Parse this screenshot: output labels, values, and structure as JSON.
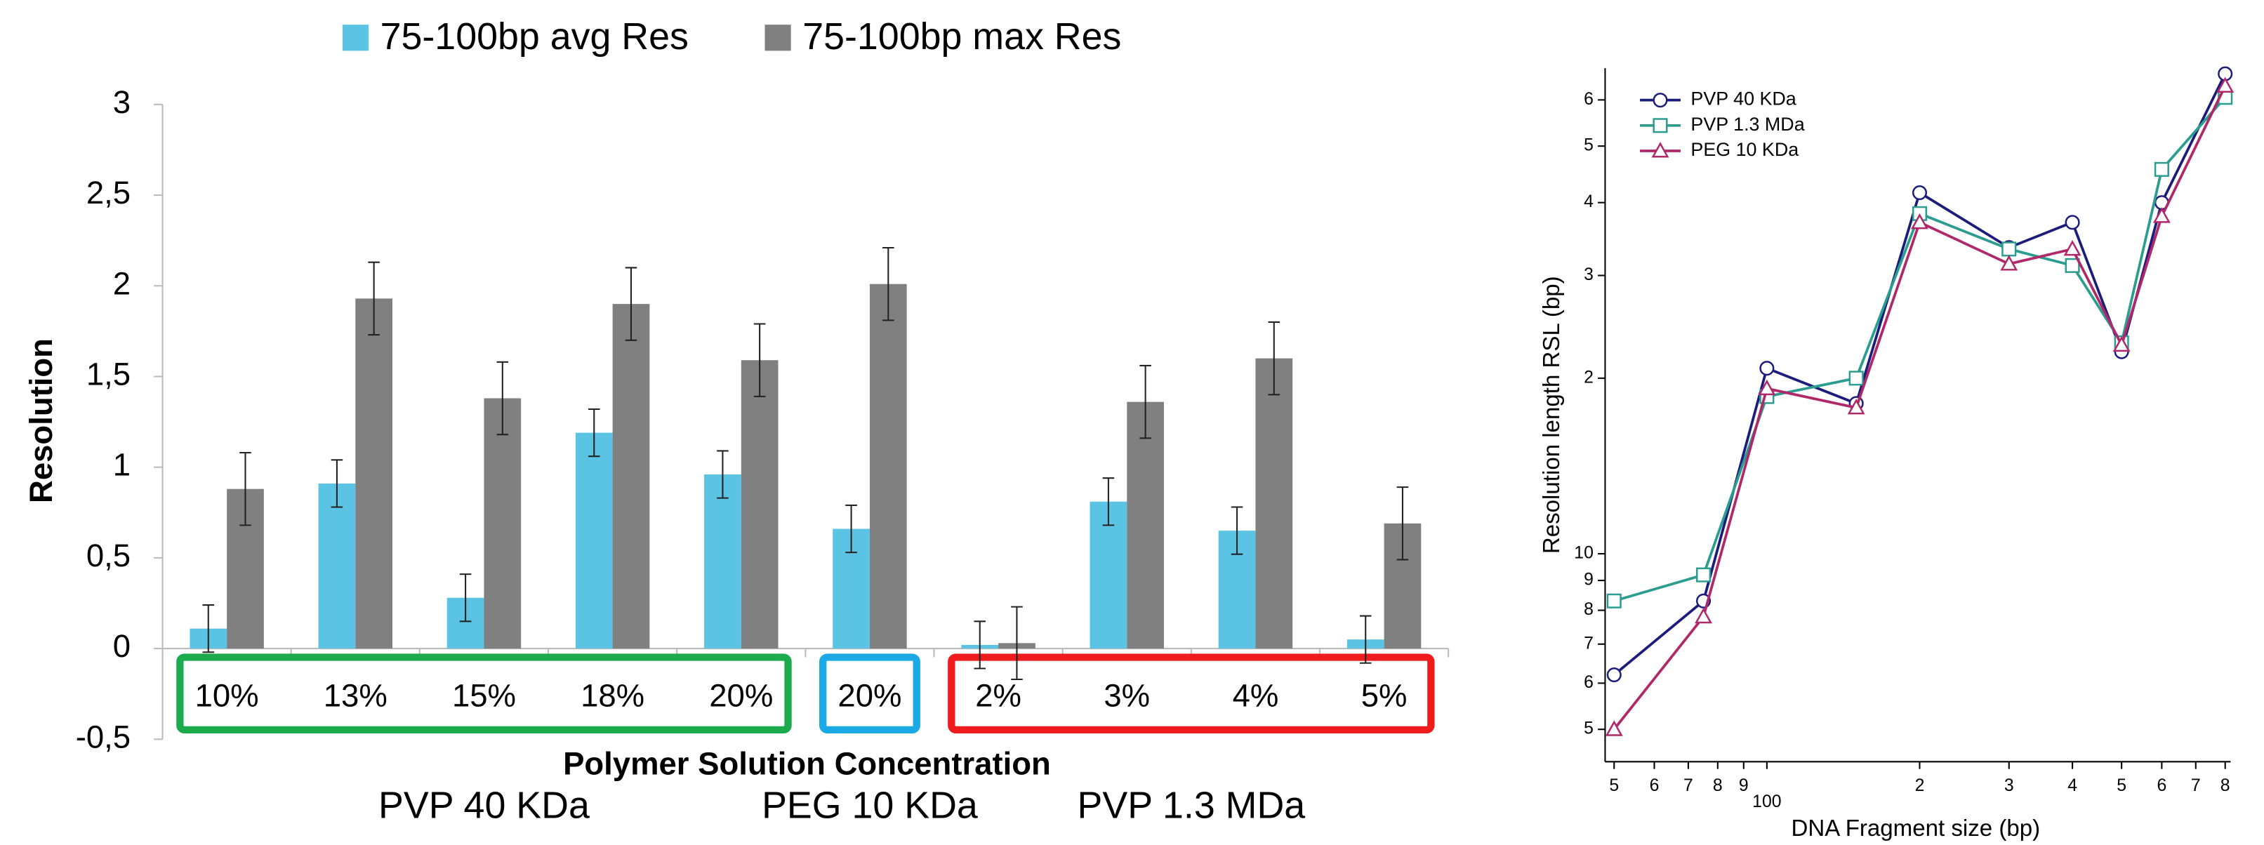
{
  "chart_data": [
    {
      "type": "bar",
      "ylabel": "Resolution",
      "xlabel": "Polymer Solution Concentration",
      "ylim": [
        -0.5,
        3
      ],
      "yticks": [
        {
          "value": -0.5,
          "label": "-0,5"
        },
        0,
        {
          "value": 0.5,
          "label": "0,5"
        },
        1,
        {
          "value": 1.5,
          "label": "1,5"
        },
        2,
        {
          "value": 2.5,
          "label": "2,5"
        },
        3
      ],
      "groups": [
        {
          "name": "PVP 40 KDa",
          "color": "#1bab4c",
          "categories": [
            "10%",
            "13%",
            "15%",
            "18%",
            "20%"
          ]
        },
        {
          "name": "PEG 10 KDa",
          "color": "#1ba9e6",
          "categories": [
            "20%"
          ]
        },
        {
          "name": "PVP 1.3 MDa",
          "color": "#ee1c1c",
          "categories": [
            "2%",
            "3%",
            "4%",
            "5%"
          ]
        }
      ],
      "series": [
        {
          "name": "75-100bp avg Res",
          "color": "#5bc4e4",
          "values": [
            0.11,
            0.91,
            0.28,
            1.19,
            0.96,
            0.66,
            0.02,
            0.81,
            0.65,
            0.05
          ],
          "errors": [
            0.13,
            0.13,
            0.13,
            0.13,
            0.13,
            0.13,
            0.13,
            0.13,
            0.13,
            0.13
          ]
        },
        {
          "name": "75-100bp max Res",
          "color": "#808080",
          "values": [
            0.88,
            1.93,
            1.38,
            1.9,
            1.59,
            2.01,
            0.03,
            1.36,
            1.6,
            0.69
          ],
          "errors": [
            0.2,
            0.2,
            0.2,
            0.2,
            0.2,
            0.2,
            0.2,
            0.2,
            0.2,
            0.2
          ]
        }
      ]
    },
    {
      "type": "line",
      "xlabel": "DNA Fragment size (bp)",
      "ylabel": "Resolution length RSL (bp)",
      "log_x": true,
      "log_y": true,
      "xlim": [
        48,
        820
      ],
      "ylim": [
        4.4,
        68
      ],
      "xticks": [
        {
          "value": 50,
          "label": "5"
        },
        {
          "value": 60,
          "label": "6"
        },
        {
          "value": 70,
          "label": "7"
        },
        {
          "value": 80,
          "label": "8"
        },
        {
          "value": 90,
          "label": "9"
        },
        100,
        {
          "value": 200,
          "label": "2"
        },
        {
          "value": 300,
          "label": "3"
        },
        {
          "value": 400,
          "label": "4"
        },
        {
          "value": 500,
          "label": "5"
        },
        {
          "value": 600,
          "label": "6"
        },
        {
          "value": 700,
          "label": "7"
        },
        {
          "value": 800,
          "label": "8"
        }
      ],
      "yticks": [
        5,
        6,
        7,
        8,
        9,
        10,
        {
          "value": 20,
          "label": "2"
        },
        {
          "value": 30,
          "label": "3"
        },
        {
          "value": 40,
          "label": "4"
        },
        {
          "value": 50,
          "label": "5"
        },
        {
          "value": 60,
          "label": "6"
        }
      ],
      "x": [
        50,
        75,
        100,
        150,
        200,
        300,
        400,
        500,
        600,
        800
      ],
      "series": [
        {
          "name": "PVP 40 KDa",
          "color": "#1c1c7c",
          "marker": "circle",
          "values": [
            6.2,
            8.3,
            20.8,
            18.1,
            41.6,
            33.5,
            37.0,
            22.2,
            40.0,
            66.5
          ]
        },
        {
          "name": "PVP 1.3 MDa",
          "color": "#2a9d8f",
          "marker": "square",
          "values": [
            8.3,
            9.2,
            18.6,
            20.0,
            38.3,
            33.3,
            31.2,
            23.0,
            45.6,
            60.6
          ]
        },
        {
          "name": "PEG 10 KDa",
          "color": "#b0286a",
          "marker": "triangle",
          "values": [
            5.0,
            7.8,
            19.2,
            17.8,
            37.0,
            31.4,
            33.3,
            22.8,
            37.9,
            63.4
          ]
        }
      ]
    }
  ]
}
